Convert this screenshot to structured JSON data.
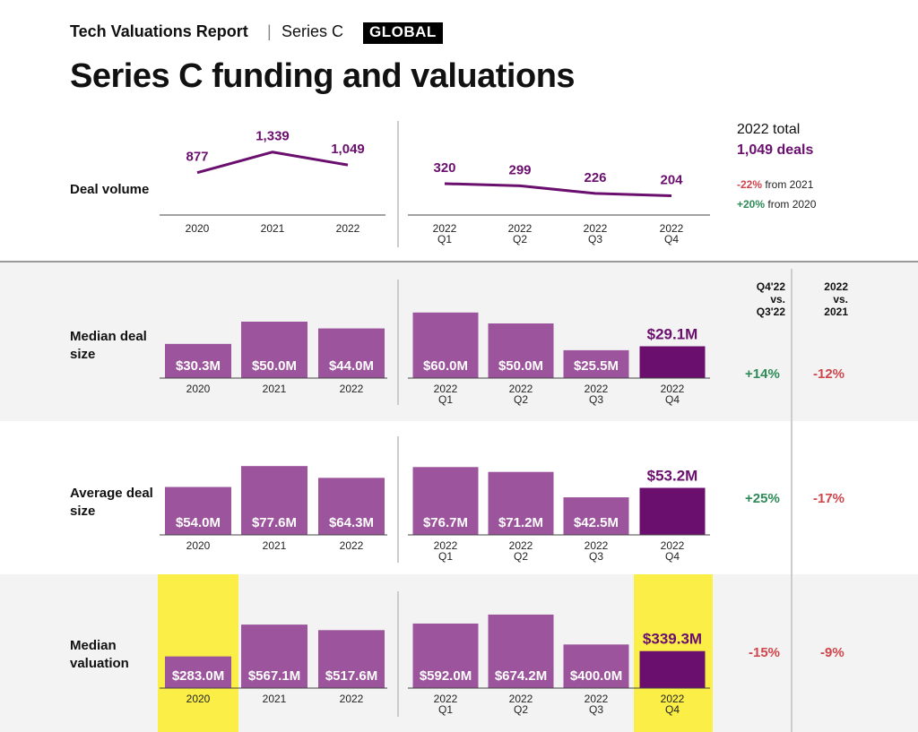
{
  "header": {
    "report": "Tech Valuations Report",
    "separator": "|",
    "series": "Series C",
    "badge": "GLOBAL"
  },
  "title": "Series C funding and valuations",
  "colors": {
    "bar": "#9c559c",
    "bar_highlight": "#6a0f6e",
    "line": "#6a0f6e",
    "highlight_bg": "#fbef47",
    "band_bg": "#f3f3f3",
    "positive": "#2e8b57",
    "negative": "#d0454c",
    "axis": "#444444"
  },
  "row_labels": {
    "volume": "Deal volume",
    "median_size": "Median deal size",
    "average_size": "Average deal size",
    "median_valuation": "Median valuation"
  },
  "totals": {
    "head": "2022 total",
    "deals": "1,049 deals",
    "change_2021_pct": "-22%",
    "change_2021_text": " from 2021",
    "change_2020_pct": "+20%",
    "change_2020_text": " from 2020"
  },
  "column_headers": {
    "qoq": "Q4'22\nvs.\nQ3'22",
    "yoy": "2022\nvs.\n2021"
  },
  "changes": {
    "median_size": {
      "qoq": "+14%",
      "yoy": "-12%"
    },
    "average_size": {
      "qoq": "+25%",
      "yoy": "-17%"
    },
    "median_valuation": {
      "qoq": "-15%",
      "yoy": "-9%"
    }
  },
  "chart_data": [
    {
      "type": "line",
      "title": "Deal volume",
      "categories": [
        "2020",
        "2021",
        "2022"
      ],
      "values": [
        877,
        1339,
        1049
      ],
      "labels": [
        "877",
        "1,339",
        "1,049"
      ]
    },
    {
      "type": "line",
      "title": "Deal volume",
      "categories": [
        [
          "2022",
          "Q1"
        ],
        [
          "2022",
          "Q2"
        ],
        [
          "2022",
          "Q3"
        ],
        [
          "2022",
          "Q4"
        ]
      ],
      "values": [
        320,
        299,
        226,
        204
      ],
      "labels": [
        "320",
        "299",
        "226",
        "204"
      ]
    },
    {
      "type": "bar",
      "title": "Median deal size",
      "categories": [
        "2020",
        "2021",
        "2022"
      ],
      "values": [
        30.3,
        50.0,
        44.0
      ],
      "labels": [
        "$30.3M",
        "$50.0M",
        "$44.0M"
      ]
    },
    {
      "type": "bar",
      "title": "Median deal size",
      "categories": [
        [
          "2022",
          "Q1"
        ],
        [
          "2022",
          "Q2"
        ],
        [
          "2022",
          "Q3"
        ],
        [
          "2022",
          "Q4"
        ]
      ],
      "values": [
        60.0,
        50.0,
        25.5,
        29.1
      ],
      "labels": [
        "$60.0M",
        "$50.0M",
        "$25.5M",
        "$29.1M"
      ],
      "highlight_last": true
    },
    {
      "type": "bar",
      "title": "Average deal size",
      "categories": [
        "2020",
        "2021",
        "2022"
      ],
      "values": [
        54.0,
        77.6,
        64.3
      ],
      "labels": [
        "$54.0M",
        "$77.6M",
        "$64.3M"
      ]
    },
    {
      "type": "bar",
      "title": "Average deal size",
      "categories": [
        [
          "2022",
          "Q1"
        ],
        [
          "2022",
          "Q2"
        ],
        [
          "2022",
          "Q3"
        ],
        [
          "2022",
          "Q4"
        ]
      ],
      "values": [
        76.7,
        71.2,
        42.5,
        53.2
      ],
      "labels": [
        "$76.7M",
        "$71.2M",
        "$42.5M",
        "$53.2M"
      ],
      "highlight_last": true
    },
    {
      "type": "bar",
      "title": "Median valuation",
      "categories": [
        "2020",
        "2021",
        "2022"
      ],
      "values": [
        283.0,
        567.1,
        517.6
      ],
      "labels": [
        "$283.0M",
        "$567.1M",
        "$517.6M"
      ],
      "highlight_first": true
    },
    {
      "type": "bar",
      "title": "Median valuation",
      "categories": [
        [
          "2022",
          "Q1"
        ],
        [
          "2022",
          "Q2"
        ],
        [
          "2022",
          "Q3"
        ],
        [
          "2022",
          "Q4"
        ]
      ],
      "values": [
        592.0,
        674.2,
        400.0,
        339.3
      ],
      "labels": [
        "$592.0M",
        "$674.2M",
        "$400.0M",
        "$339.3M"
      ],
      "highlight_last": true,
      "highlight_bg_last": true
    }
  ]
}
